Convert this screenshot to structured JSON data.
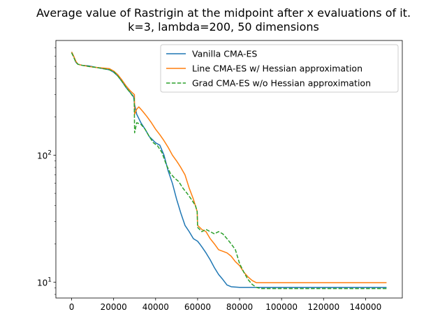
{
  "chart_data": {
    "type": "line",
    "title_line1": "Average value of Rastrigin at the midpoint after x evaluations of it.",
    "title_line2": "k=3, lambda=200, 50 dimensions",
    "xlabel": "",
    "ylabel": "",
    "x_scale": "linear",
    "y_scale": "log",
    "xlim": [
      -7500,
      157500
    ],
    "ylim": [
      7.5,
      800
    ],
    "x_ticks": [
      0,
      20000,
      40000,
      60000,
      80000,
      100000,
      120000,
      140000
    ],
    "x_tick_labels": [
      "0",
      "20000",
      "40000",
      "60000",
      "80000",
      "100000",
      "120000",
      "140000"
    ],
    "y_ticks": [
      10,
      100
    ],
    "y_tick_labels": [
      {
        "base": "10",
        "exp": "1"
      },
      {
        "base": "10",
        "exp": "2"
      }
    ],
    "grid": false,
    "legend_position": "upper right",
    "series": [
      {
        "name": "Vanilla CMA-ES",
        "color": "#1f77b4",
        "dash": "solid",
        "x": [
          0,
          1000,
          2000,
          3000,
          5000,
          8000,
          12000,
          15000,
          18000,
          20000,
          22000,
          24000,
          26000,
          28000,
          29500,
          30000,
          31000,
          33000,
          35000,
          37000,
          39000,
          40000,
          42000,
          44000,
          46000,
          48000,
          50000,
          52000,
          54000,
          56000,
          58000,
          60000,
          61000,
          62000,
          64000,
          66000,
          68000,
          70000,
          72000,
          74000,
          76000,
          80000,
          85000,
          90000,
          100000,
          120000,
          140000,
          150000
        ],
        "y": [
          650,
          600,
          540,
          520,
          510,
          505,
          490,
          480,
          470,
          450,
          420,
          380,
          340,
          310,
          290,
          250,
          210,
          180,
          160,
          140,
          130,
          125,
          120,
          100,
          75,
          60,
          45,
          35,
          28,
          25,
          22,
          21,
          20,
          19,
          17,
          15,
          13,
          11.5,
          10.5,
          9.5,
          9.2,
          9.1,
          9.1,
          9.1,
          9.1,
          9.1,
          9.1,
          9.1
        ]
      },
      {
        "name": "Line CMA-ES w/ Hessian approximation",
        "color": "#ff7f0e",
        "dash": "solid",
        "x": [
          0,
          1000,
          2000,
          3000,
          5000,
          8000,
          12000,
          15000,
          18000,
          20000,
          22000,
          24000,
          26000,
          28000,
          29900,
          30000,
          31000,
          32000,
          34000,
          36000,
          38000,
          40000,
          42000,
          44000,
          46000,
          48000,
          50000,
          52000,
          54000,
          56000,
          58000,
          59800,
          60000,
          61000,
          62000,
          64000,
          66000,
          68000,
          70000,
          72000,
          74000,
          76000,
          78000,
          80000,
          82000,
          84000,
          86000,
          88000,
          90000,
          100000,
          120000,
          140000,
          150000
        ],
        "y": [
          650,
          600,
          550,
          520,
          510,
          500,
          490,
          485,
          480,
          460,
          430,
          390,
          350,
          320,
          300,
          210,
          230,
          240,
          220,
          200,
          180,
          160,
          145,
          130,
          115,
          100,
          90,
          80,
          70,
          55,
          45,
          36,
          28,
          27,
          26,
          25,
          22,
          20,
          18,
          17.5,
          17,
          16,
          14.5,
          13.5,
          12,
          11,
          10.3,
          9.9,
          9.9,
          9.9,
          9.9,
          9.9,
          9.9
        ]
      },
      {
        "name": "Grad CMA-ES w/o Hessian approximation",
        "color": "#2ca02c",
        "dash": "dashed",
        "x": [
          0,
          1000,
          2000,
          3000,
          5000,
          8000,
          12000,
          15000,
          18000,
          20000,
          22000,
          24000,
          26000,
          28000,
          29800,
          30000,
          31000,
          33000,
          35000,
          37000,
          39000,
          41000,
          43000,
          45000,
          47000,
          49000,
          51000,
          53000,
          55000,
          57000,
          59000,
          59800,
          60000,
          62000,
          64000,
          66000,
          68000,
          70000,
          72000,
          74000,
          76000,
          78000,
          80000,
          82000,
          84000,
          86000,
          88000,
          90000,
          100000,
          120000,
          140000,
          150000
        ],
        "y": [
          640,
          590,
          540,
          520,
          510,
          500,
          490,
          480,
          470,
          455,
          420,
          380,
          340,
          310,
          280,
          150,
          180,
          175,
          160,
          140,
          125,
          118,
          105,
          85,
          72,
          66,
          62,
          55,
          50,
          45,
          40,
          36,
          27,
          25,
          26,
          25,
          24,
          25,
          24,
          22,
          20,
          18,
          14,
          12,
          10.5,
          9.6,
          9.1,
          8.9,
          8.9,
          8.9,
          8.9,
          8.9
        ]
      }
    ]
  }
}
